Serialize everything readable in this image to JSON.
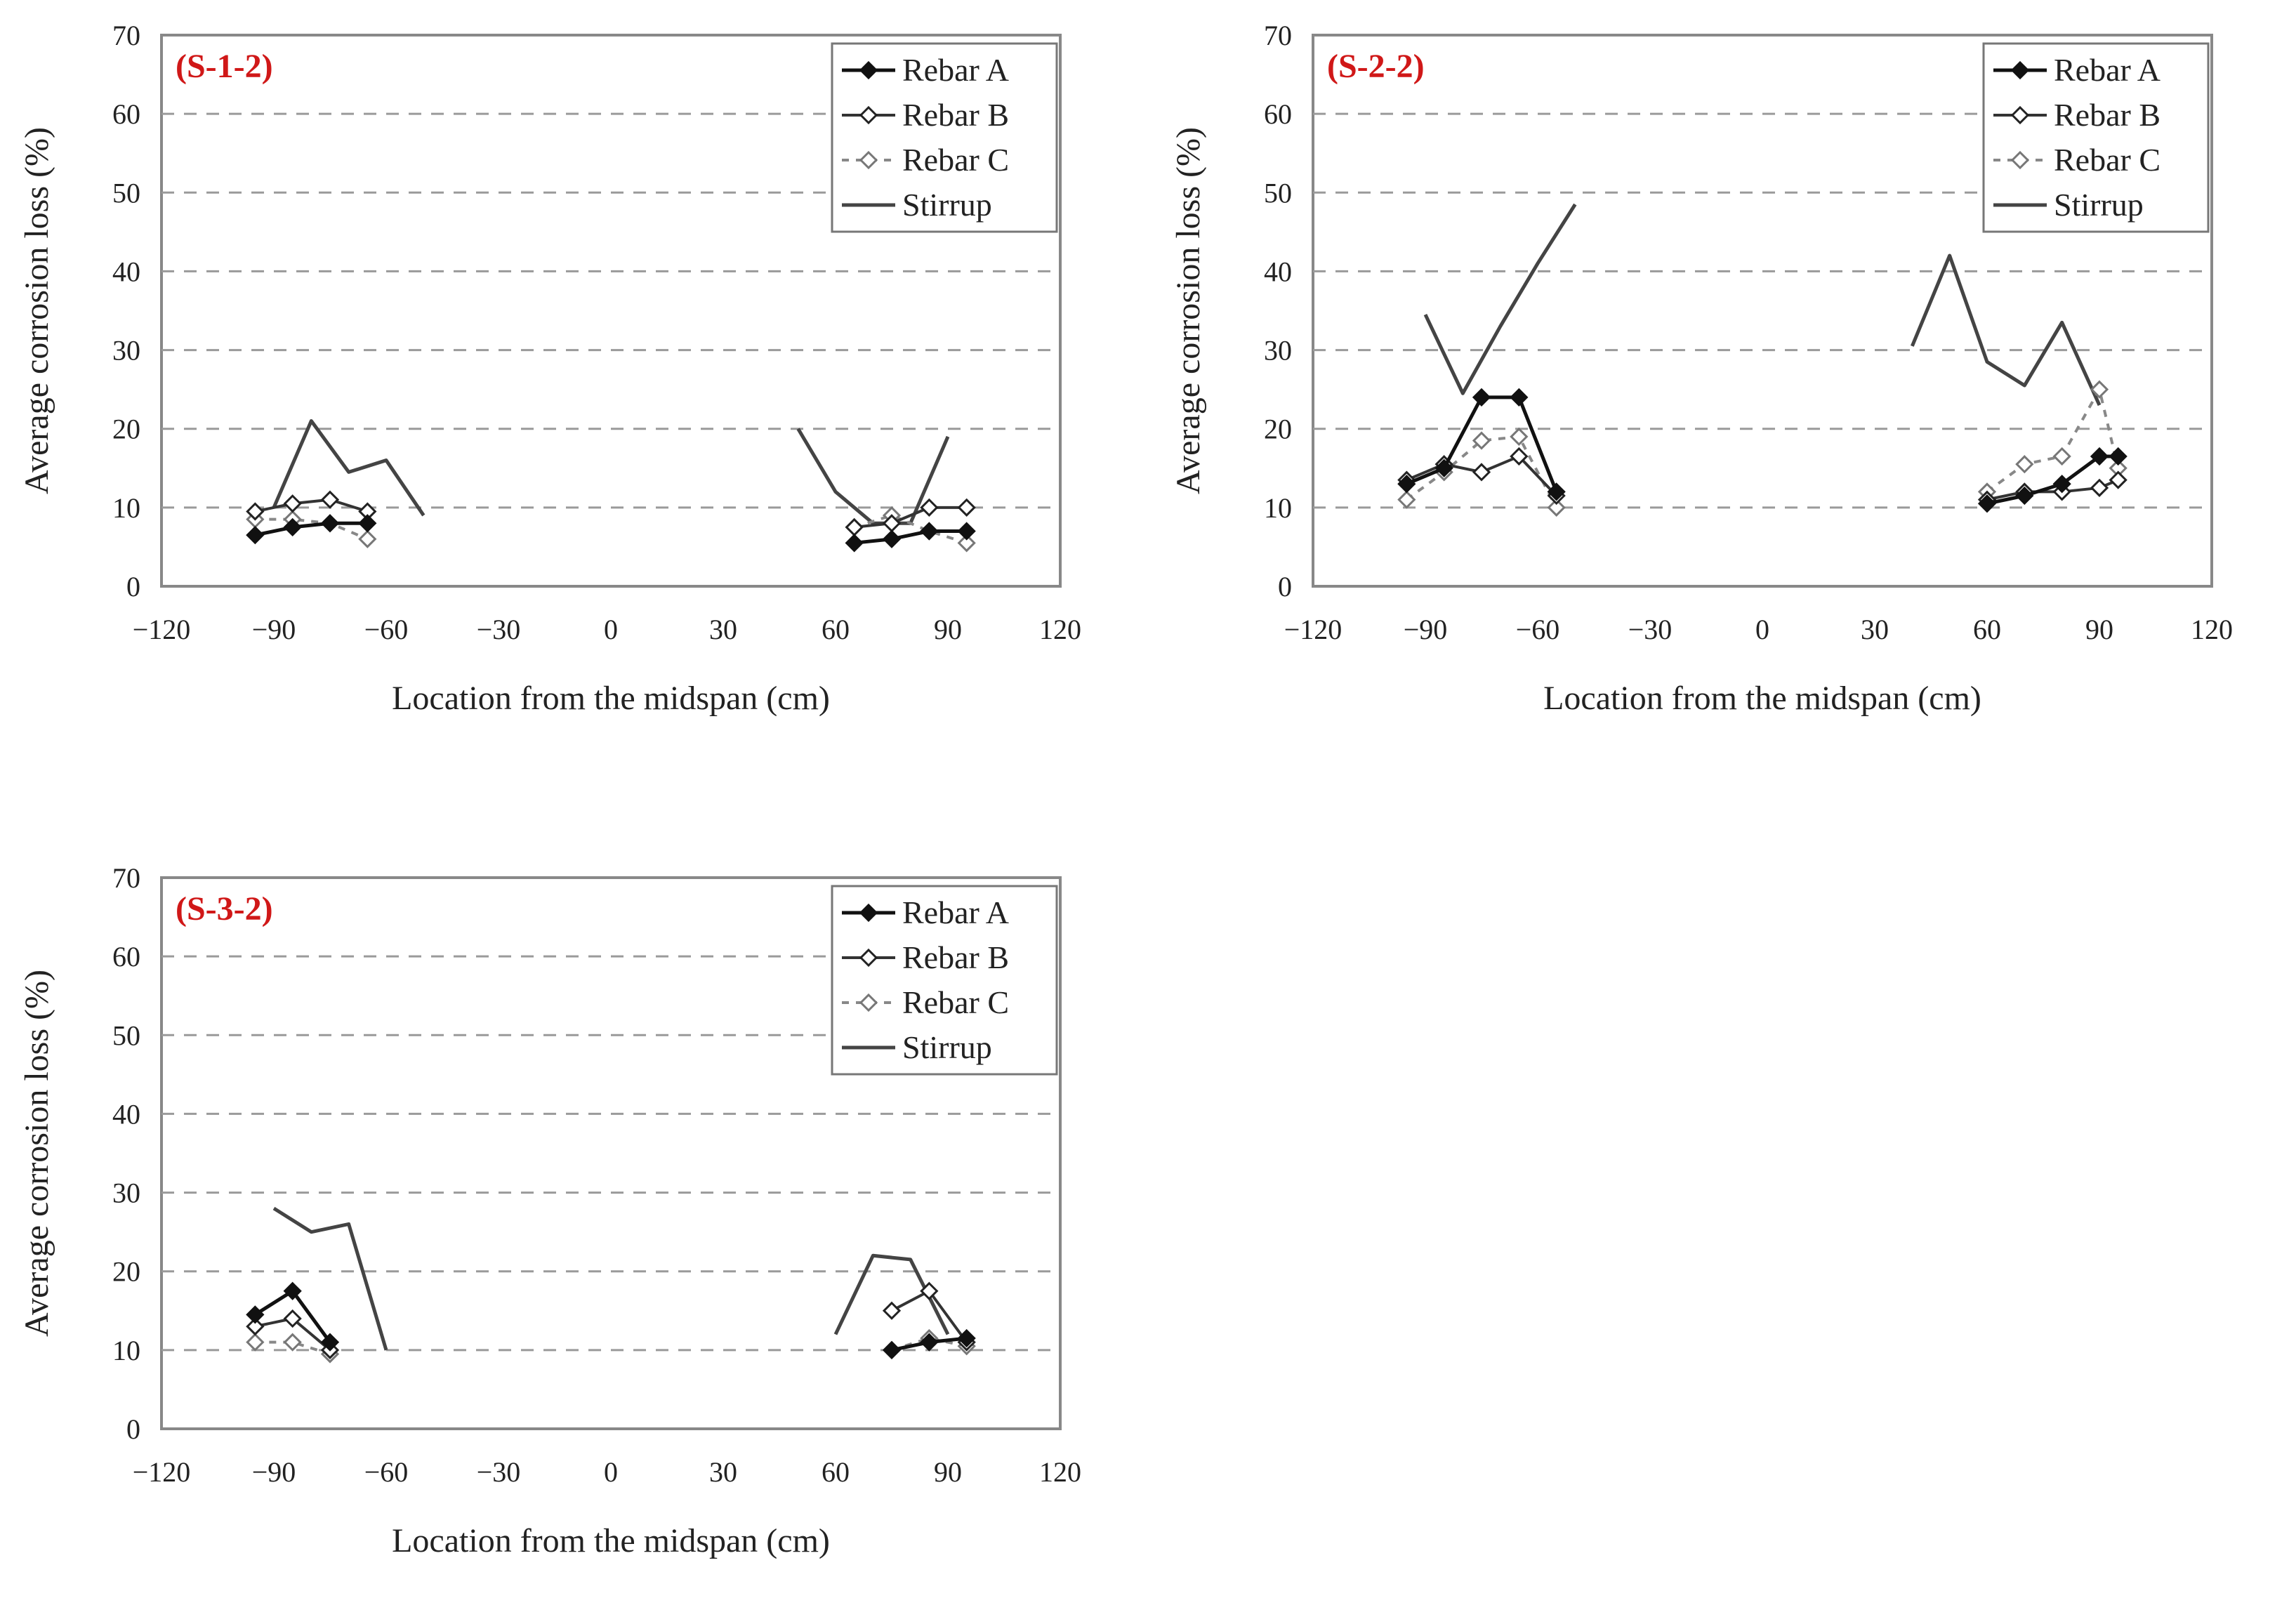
{
  "chart_data": [
    {
      "type": "line",
      "label": "(S-1-2)",
      "xlabel": "Location from the midspan (cm)",
      "ylabel": "Average corrosion loss (%)",
      "xlim": [
        -120,
        120
      ],
      "ylim": [
        0,
        70
      ],
      "xticks": [
        -120,
        -90,
        -60,
        -30,
        0,
        30,
        60,
        90,
        120
      ],
      "xtick_labels": [
        "−120",
        "−90",
        "−60",
        "−30",
        "0",
        "30",
        "60",
        "90",
        "120"
      ],
      "yticks": [
        0,
        10,
        20,
        30,
        40,
        50,
        60,
        70
      ],
      "ytick_labels": [
        "0",
        "10",
        "20",
        "30",
        "40",
        "50",
        "60",
        "70"
      ],
      "grid": "horizontal dashed",
      "legend": "top-right",
      "series": [
        {
          "name": "Rebar A",
          "segments": [
            [
              [
                -95,
                6.5
              ],
              [
                -85,
                7.5
              ],
              [
                -75,
                8
              ],
              [
                -65,
                8
              ]
            ],
            [
              [
                65,
                5.5
              ],
              [
                75,
                6
              ],
              [
                85,
                7
              ],
              [
                95,
                7
              ]
            ]
          ]
        },
        {
          "name": "Rebar B",
          "segments": [
            [
              [
                -95,
                9.5
              ],
              [
                -85,
                10.5
              ],
              [
                -75,
                11
              ],
              [
                -65,
                9.5
              ]
            ],
            [
              [
                65,
                7.5
              ],
              [
                75,
                8
              ],
              [
                85,
                10
              ],
              [
                95,
                10
              ]
            ]
          ]
        },
        {
          "name": "Rebar C",
          "segments": [
            [
              [
                -95,
                8.5
              ],
              [
                -85,
                8.5
              ],
              [
                -75,
                8
              ],
              [
                -65,
                6
              ]
            ],
            [
              [
                65,
                7.5
              ],
              [
                75,
                9
              ],
              [
                85,
                7
              ],
              [
                95,
                5.5
              ]
            ]
          ]
        },
        {
          "name": "Stirrup",
          "segments": [
            [
              [
                -90,
                10
              ],
              [
                -80,
                21
              ],
              [
                -70,
                14.5
              ],
              [
                -60,
                16
              ],
              [
                -50,
                9
              ]
            ],
            [
              [
                50,
                20
              ],
              [
                60,
                12
              ],
              [
                70,
                8
              ],
              [
                80,
                8
              ],
              [
                90,
                19
              ]
            ]
          ]
        }
      ]
    },
    {
      "type": "line",
      "label": "(S-2-2)",
      "xlabel": "Location from the midspan (cm)",
      "ylabel": "Average corrosion loss (%)",
      "xlim": [
        -120,
        120
      ],
      "ylim": [
        0,
        70
      ],
      "xticks": [
        -120,
        -90,
        -60,
        -30,
        0,
        30,
        60,
        90,
        120
      ],
      "xtick_labels": [
        "−120",
        "−90",
        "−60",
        "−30",
        "0",
        "30",
        "60",
        "90",
        "120"
      ],
      "yticks": [
        0,
        10,
        20,
        30,
        40,
        50,
        60,
        70
      ],
      "ytick_labels": [
        "0",
        "10",
        "20",
        "30",
        "40",
        "50",
        "60",
        "70"
      ],
      "grid": "horizontal dashed",
      "legend": "top-right",
      "series": [
        {
          "name": "Rebar A",
          "segments": [
            [
              [
                -95,
                13
              ],
              [
                -85,
                15
              ],
              [
                -75,
                24
              ],
              [
                -65,
                24
              ],
              [
                -55,
                12
              ]
            ],
            [
              [
                60,
                10.5
              ],
              [
                70,
                11.5
              ],
              [
                80,
                13
              ],
              [
                90,
                16.5
              ],
              [
                95,
                16.5
              ]
            ]
          ]
        },
        {
          "name": "Rebar B",
          "segments": [
            [
              [
                -95,
                13.5
              ],
              [
                -85,
                15.5
              ],
              [
                -75,
                14.5
              ],
              [
                -65,
                16.5
              ],
              [
                -55,
                11.5
              ]
            ],
            [
              [
                60,
                11
              ],
              [
                70,
                12
              ],
              [
                80,
                12
              ],
              [
                90,
                12.5
              ],
              [
                95,
                13.5
              ]
            ]
          ]
        },
        {
          "name": "Rebar C",
          "segments": [
            [
              [
                -95,
                11
              ],
              [
                -85,
                14.5
              ],
              [
                -75,
                18.5
              ],
              [
                -65,
                19
              ],
              [
                -55,
                10
              ]
            ],
            [
              [
                60,
                12
              ],
              [
                70,
                15.5
              ],
              [
                80,
                16.5
              ],
              [
                90,
                25
              ],
              [
                95,
                15
              ]
            ]
          ]
        },
        {
          "name": "Stirrup",
          "segments": [
            [
              [
                -90,
                34.5
              ],
              [
                -80,
                24.5
              ],
              [
                -70,
                33
              ],
              [
                -60,
                41
              ],
              [
                -50,
                48.5
              ]
            ],
            [
              [
                40,
                30.5
              ],
              [
                50,
                42
              ],
              [
                60,
                28.5
              ],
              [
                70,
                25.5
              ],
              [
                80,
                33.5
              ],
              [
                90,
                23
              ]
            ]
          ]
        }
      ]
    },
    {
      "type": "line",
      "label": "(S-3-2)",
      "xlabel": "Location from the midspan (cm)",
      "ylabel": "Average corrosion loss (%)",
      "xlim": [
        -120,
        120
      ],
      "ylim": [
        0,
        70
      ],
      "xticks": [
        -120,
        -90,
        -60,
        -30,
        0,
        30,
        60,
        90,
        120
      ],
      "xtick_labels": [
        "−120",
        "−90",
        "−60",
        "−30",
        "0",
        "30",
        "60",
        "90",
        "120"
      ],
      "yticks": [
        0,
        10,
        20,
        30,
        40,
        50,
        60,
        70
      ],
      "ytick_labels": [
        "0",
        "10",
        "20",
        "30",
        "40",
        "50",
        "60",
        "70"
      ],
      "grid": "horizontal dashed",
      "legend": "top-right",
      "series": [
        {
          "name": "Rebar A",
          "segments": [
            [
              [
                -95,
                14.5
              ],
              [
                -85,
                17.5
              ],
              [
                -75,
                11
              ]
            ],
            [
              [
                75,
                10
              ],
              [
                85,
                11
              ],
              [
                95,
                11.5
              ]
            ]
          ]
        },
        {
          "name": "Rebar B",
          "segments": [
            [
              [
                -95,
                13
              ],
              [
                -85,
                14
              ],
              [
                -75,
                10
              ]
            ],
            [
              [
                75,
                15
              ],
              [
                85,
                17.5
              ],
              [
                95,
                11
              ]
            ]
          ]
        },
        {
          "name": "Rebar C",
          "segments": [
            [
              [
                -95,
                11
              ],
              [
                -85,
                11
              ],
              [
                -75,
                9.5
              ]
            ],
            [
              [
                75,
                10
              ],
              [
                85,
                11.5
              ],
              [
                95,
                10.5
              ]
            ]
          ]
        },
        {
          "name": "Stirrup",
          "segments": [
            [
              [
                -90,
                28
              ],
              [
                -80,
                25
              ],
              [
                -70,
                26
              ],
              [
                -60,
                10
              ]
            ],
            [
              [
                60,
                12
              ],
              [
                70,
                22
              ],
              [
                80,
                21.5
              ],
              [
                90,
                12
              ]
            ]
          ]
        }
      ]
    }
  ]
}
